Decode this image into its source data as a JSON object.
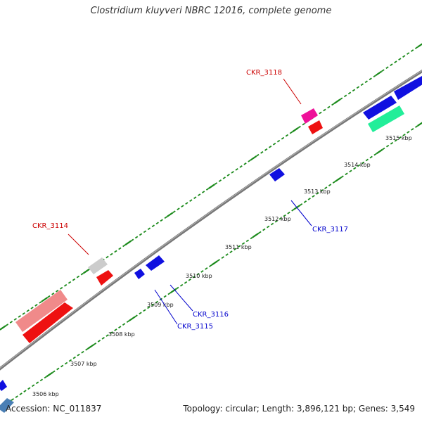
{
  "title": "Clostridium kluyveri NBRC 12016, complete genome",
  "footer": {
    "accession": "Accession: NC_011837",
    "summary": "Topology: circular; Length: 3,896,121 bp; Genes: 3,549"
  },
  "colors": {
    "backbone": "#808080",
    "tick": "#1a8a1a",
    "label_red": "#cc0000",
    "label_blue": "#0000cc"
  },
  "scale_ticks": [
    "3506 kbp",
    "3507 kbp",
    "3508 kbp",
    "3509 kbp",
    "3510 kbp",
    "3511 kbp",
    "3512 kbp",
    "3513 kbp",
    "3514 kbp",
    "3515 kbp"
  ],
  "gene_labels": [
    {
      "name": "CKR_3118",
      "color": "#cc0000"
    },
    {
      "name": "CKR_3114",
      "color": "#cc0000"
    },
    {
      "name": "CKR_3117",
      "color": "#0000cc"
    },
    {
      "name": "CKR_3116",
      "color": "#0000cc"
    },
    {
      "name": "CKR_3115",
      "color": "#0000cc"
    }
  ]
}
